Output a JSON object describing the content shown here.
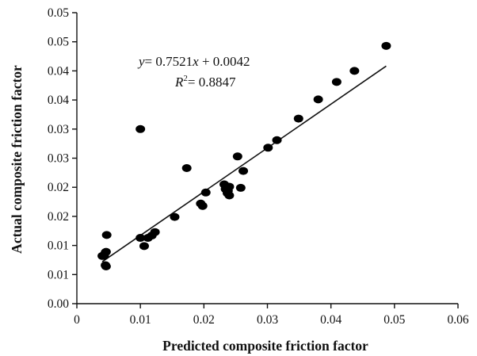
{
  "chart_data": {
    "type": "scatter",
    "xlabel": "Predicted composite friction factor",
    "ylabel": "Actual composite friction factor",
    "x_ticks": [
      0,
      0.01,
      0.02,
      0.03,
      0.04,
      0.05,
      0.06
    ],
    "x_tick_labels": [
      "0",
      "0.01",
      "0.01",
      "0.02",
      "0.02",
      "0.03",
      "0.03",
      "0.04",
      "0.04",
      "0.05",
      "0.05",
      "0.06"
    ],
    "x_tick_labels_shown": [
      "0",
      "0.01",
      "0.02",
      "0.03",
      "0.04",
      "0.05",
      "0.06"
    ],
    "y_ticks": [
      0,
      0.005,
      0.01,
      0.015,
      0.02,
      0.025,
      0.03,
      0.035,
      0.04,
      0.045,
      0.05
    ],
    "y_tick_labels": [
      "0.00",
      "0.01",
      "0.01",
      "0.02",
      "0.02",
      "0.03",
      "0.03",
      "0.04",
      "0.04",
      "0.05",
      "0.05"
    ],
    "xlim": [
      0,
      0.06
    ],
    "ylim": [
      0,
      0.05
    ],
    "grid": false,
    "equation": {
      "line1_y": "y",
      "line1_rest": "= 0.7521",
      "line1_x": "x",
      "line1_tail": " + 0.0042",
      "line2_r": "R",
      "line2_sup": "2",
      "line2_rest": "= 0.8847"
    },
    "trendline": {
      "slope": 0.7521,
      "intercept": 0.0042,
      "x_range": [
        0.004,
        0.0487
      ]
    },
    "points": [
      {
        "x": 0.004,
        "y": 0.0082
      },
      {
        "x": 0.0043,
        "y": 0.0082
      },
      {
        "x": 0.0045,
        "y": 0.0088
      },
      {
        "x": 0.0046,
        "y": 0.0089
      },
      {
        "x": 0.0045,
        "y": 0.0066
      },
      {
        "x": 0.0046,
        "y": 0.0064
      },
      {
        "x": 0.0047,
        "y": 0.0118
      },
      {
        "x": 0.01,
        "y": 0.0113
      },
      {
        "x": 0.01,
        "y": 0.03
      },
      {
        "x": 0.0106,
        "y": 0.0099
      },
      {
        "x": 0.0112,
        "y": 0.0113
      },
      {
        "x": 0.0118,
        "y": 0.0117
      },
      {
        "x": 0.0123,
        "y": 0.0123
      },
      {
        "x": 0.0154,
        "y": 0.0149
      },
      {
        "x": 0.0173,
        "y": 0.0233
      },
      {
        "x": 0.0195,
        "y": 0.0172
      },
      {
        "x": 0.0198,
        "y": 0.0168
      },
      {
        "x": 0.0203,
        "y": 0.0191
      },
      {
        "x": 0.0232,
        "y": 0.0205
      },
      {
        "x": 0.0234,
        "y": 0.0197
      },
      {
        "x": 0.0237,
        "y": 0.019
      },
      {
        "x": 0.0238,
        "y": 0.0194
      },
      {
        "x": 0.024,
        "y": 0.0186
      },
      {
        "x": 0.024,
        "y": 0.0201
      },
      {
        "x": 0.0253,
        "y": 0.0253
      },
      {
        "x": 0.0258,
        "y": 0.0199
      },
      {
        "x": 0.0262,
        "y": 0.0228
      },
      {
        "x": 0.0301,
        "y": 0.0268
      },
      {
        "x": 0.0315,
        "y": 0.0281
      },
      {
        "x": 0.0349,
        "y": 0.0318
      },
      {
        "x": 0.038,
        "y": 0.0351
      },
      {
        "x": 0.0409,
        "y": 0.0381
      },
      {
        "x": 0.0437,
        "y": 0.04
      },
      {
        "x": 0.0487,
        "y": 0.0443
      }
    ]
  }
}
